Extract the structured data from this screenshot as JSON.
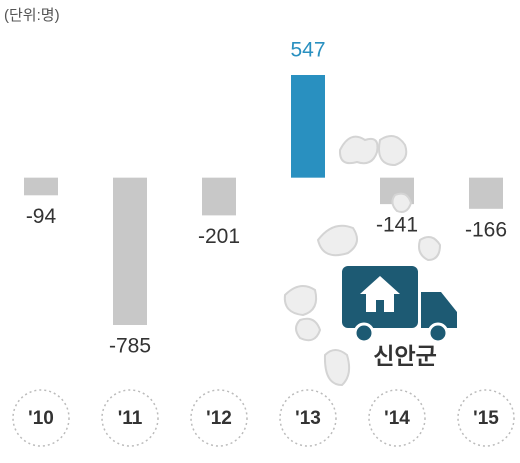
{
  "chart_data": {
    "type": "bar",
    "unit_label": "(단위:명)",
    "categories": [
      "'10",
      "'11",
      "'12",
      "'13",
      "'14",
      "'15"
    ],
    "values": [
      -94,
      -785,
      -201,
      547,
      -141,
      -166
    ],
    "colors": [
      "#c8c8c8",
      "#c8c8c8",
      "#c8c8c8",
      "#2990c0",
      "#c8c8c8",
      "#c8c8c8"
    ],
    "label_colors": [
      "#333333",
      "#333333",
      "#333333",
      "#2990c0",
      "#333333",
      "#333333"
    ],
    "annotation": "신안군"
  }
}
